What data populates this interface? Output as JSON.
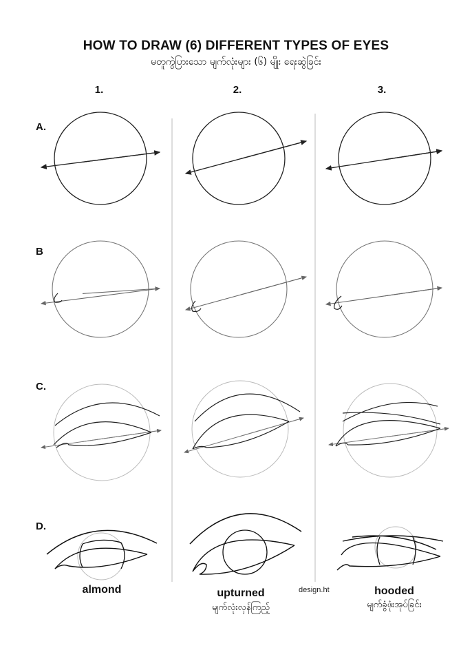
{
  "title": "HOW TO DRAW (6) DIFFERENT TYPES OF EYES",
  "subtitle": "မတူကွဲပြားသော မျက်လုံးများ (၆) မျိုး ရေးဆွဲခြင်း",
  "columns": [
    "1.",
    "2.",
    "3."
  ],
  "rows": [
    "A.",
    "B",
    "C.",
    "D."
  ],
  "eye_types": [
    {
      "name": "almond",
      "myanmar": ""
    },
    {
      "name": "upturned",
      "myanmar": "မျက်လုံးလှန်ကြည့်"
    },
    {
      "name": "hooded",
      "myanmar": "မျက်ခွံဖုံးအုပ်ခြင်း"
    }
  ],
  "credit": "design.ht",
  "colors": {
    "ink": "#111111",
    "guide": "#888888",
    "light": "#bbbbbb"
  }
}
